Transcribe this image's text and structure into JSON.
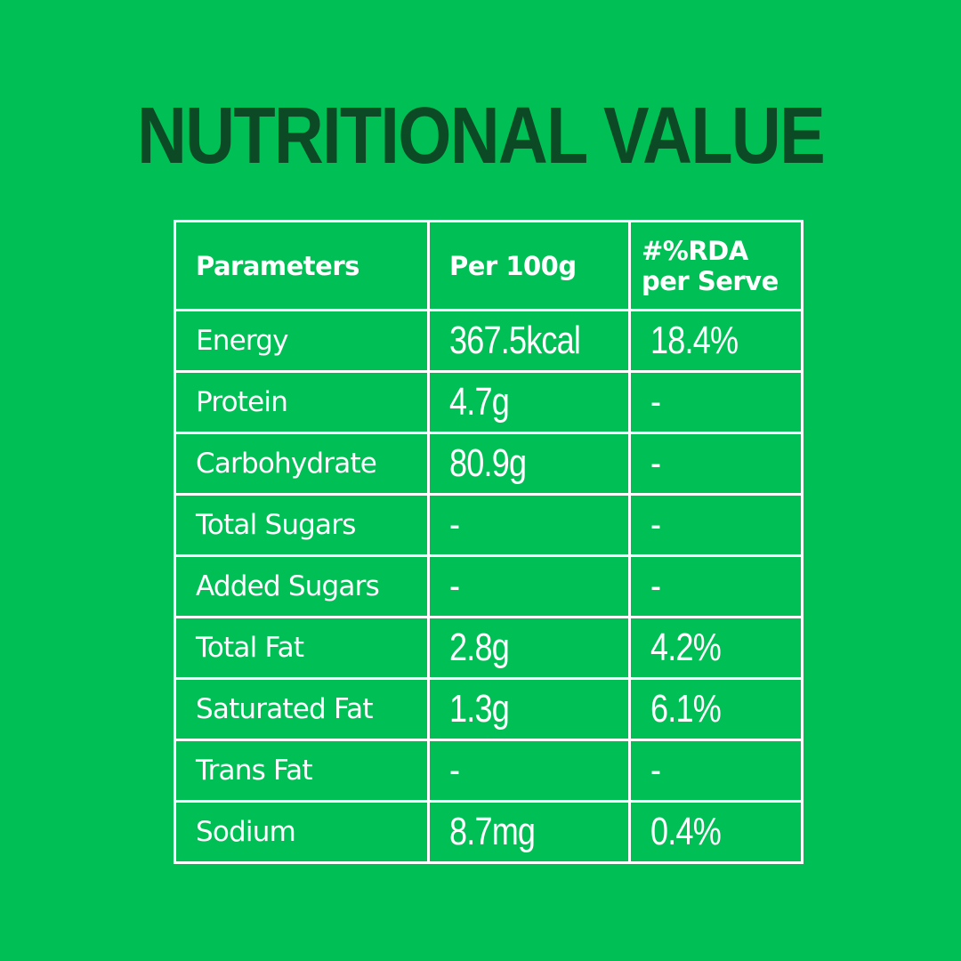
{
  "title": "NUTRITIONAL VALUE",
  "colors": {
    "background": "#00bf55",
    "title": "#0b4a24",
    "text_and_lines": "#ffffff"
  },
  "table": {
    "headers": {
      "parameters": "Parameters",
      "per_100g": "Per 100g",
      "rda": "#%RDA per Serve"
    },
    "rows": [
      {
        "parameter": "Energy",
        "per_100g": "367.5kcal",
        "rda": "18.4%"
      },
      {
        "parameter": "Protein",
        "per_100g": "4.7g",
        "rda": "-"
      },
      {
        "parameter": "Carbohydrate",
        "per_100g": "80.9g",
        "rda": "-"
      },
      {
        "parameter": "Total Sugars",
        "per_100g": "-",
        "rda": "-"
      },
      {
        "parameter": "Added Sugars",
        "per_100g": "-",
        "rda": "-"
      },
      {
        "parameter": "Total Fat",
        "per_100g": "2.8g",
        "rda": "4.2%"
      },
      {
        "parameter": "Saturated Fat",
        "per_100g": "1.3g",
        "rda": "6.1%"
      },
      {
        "parameter": "Trans Fat",
        "per_100g": "-",
        "rda": "-"
      },
      {
        "parameter": "Sodium",
        "per_100g": "8.7mg",
        "rda": "0.4%"
      }
    ]
  }
}
